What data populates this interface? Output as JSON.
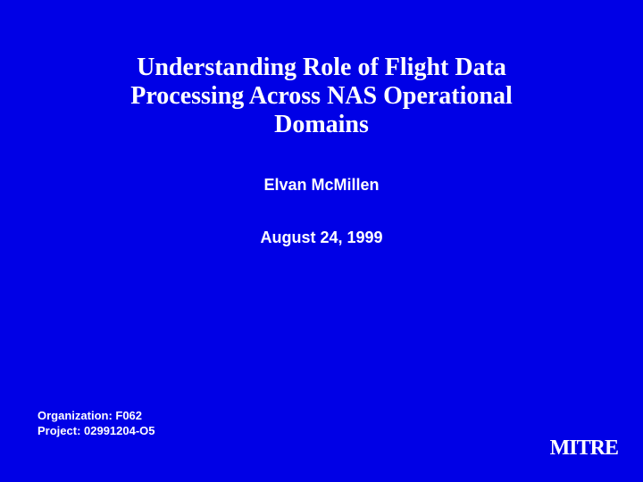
{
  "slide": {
    "background_color": "#0000e6",
    "text_color": "#ffffff",
    "title": {
      "text": "Understanding Role of Flight Data Processing Across NAS Operational Domains",
      "fontsize": 28
    },
    "author": {
      "text": "Elvan McMillen",
      "fontsize": 18
    },
    "date": {
      "text": "August 24, 1999",
      "fontsize": 18
    },
    "footer": {
      "organization": "Organization: F062",
      "project": "Project: 02991204-O5",
      "fontsize": 13
    },
    "logo": {
      "text": "MITRE",
      "fontsize": 24
    }
  }
}
